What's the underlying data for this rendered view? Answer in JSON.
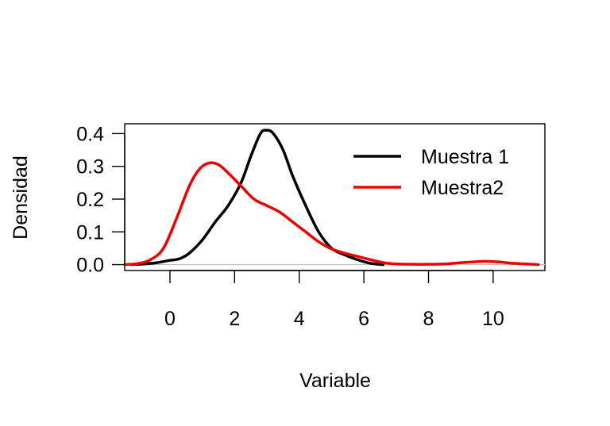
{
  "chart_data": {
    "type": "line",
    "title": "",
    "xlabel": "Variable",
    "ylabel": "Densidad",
    "xlim": [
      -1.4,
      11.6
    ],
    "ylim": [
      -0.018,
      0.43
    ],
    "x_ticks": [
      0,
      2,
      4,
      6,
      8,
      10
    ],
    "y_ticks": [
      0.0,
      0.1,
      0.2,
      0.3,
      0.4
    ],
    "y_tick_labels": [
      "0.0",
      "0.1",
      "0.2",
      "0.3",
      "0.4"
    ],
    "zero_line": true,
    "grid": false,
    "legend_position": "top-right",
    "series": [
      {
        "name": "Muestra 1",
        "color": "#000000",
        "x": [
          -1.2,
          -0.8,
          -0.4,
          0.0,
          0.3,
          0.6,
          1.0,
          1.4,
          1.8,
          2.2,
          2.5,
          2.8,
          3.0,
          3.2,
          3.5,
          3.8,
          4.2,
          4.6,
          5.0,
          5.4,
          5.8,
          6.2,
          6.6
        ],
        "y": [
          0.0,
          0.002,
          0.006,
          0.013,
          0.018,
          0.035,
          0.075,
          0.13,
          0.18,
          0.25,
          0.33,
          0.4,
          0.41,
          0.4,
          0.35,
          0.27,
          0.18,
          0.1,
          0.05,
          0.03,
          0.015,
          0.004,
          0.0
        ]
      },
      {
        "name": "Muestra2",
        "color": "#ee0000",
        "x": [
          -1.4,
          -1.0,
          -0.6,
          -0.2,
          0.2,
          0.6,
          0.9,
          1.2,
          1.5,
          1.8,
          2.2,
          2.6,
          3.0,
          3.4,
          3.8,
          4.2,
          4.6,
          5.0,
          5.4,
          5.8,
          6.2,
          6.6,
          7.0,
          7.5,
          8.0,
          8.5,
          9.0,
          9.5,
          9.8,
          10.2,
          10.6,
          11.0,
          11.4
        ],
        "y": [
          0.0,
          0.003,
          0.015,
          0.05,
          0.14,
          0.24,
          0.29,
          0.31,
          0.305,
          0.28,
          0.24,
          0.2,
          0.18,
          0.16,
          0.13,
          0.1,
          0.07,
          0.048,
          0.035,
          0.025,
          0.015,
          0.006,
          0.002,
          0.001,
          0.001,
          0.002,
          0.006,
          0.009,
          0.01,
          0.008,
          0.004,
          0.002,
          0.0
        ]
      }
    ]
  }
}
